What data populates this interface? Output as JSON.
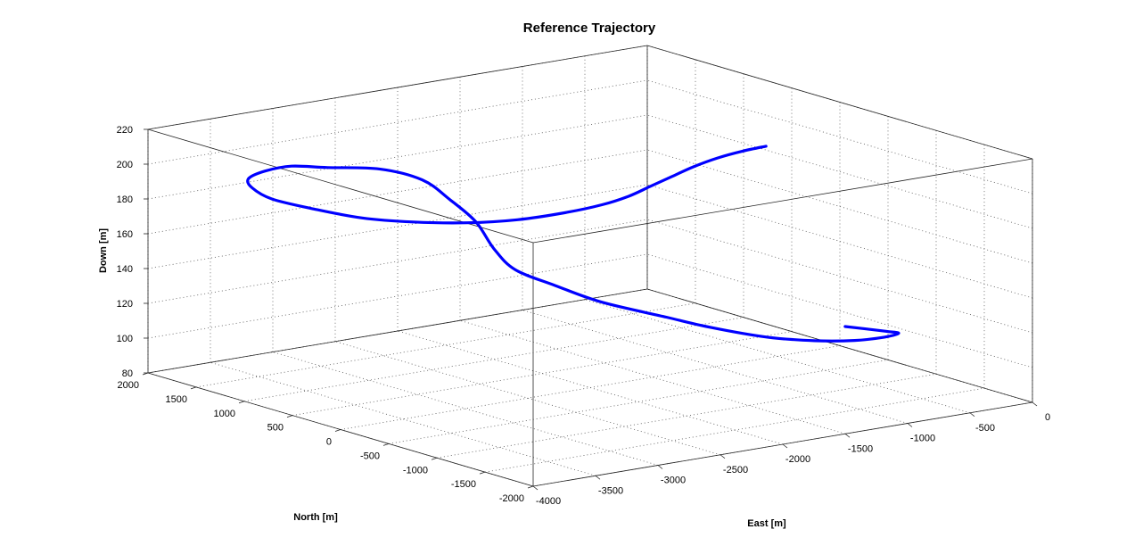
{
  "chart_data": {
    "type": "line",
    "projection": "3d",
    "title": "Reference Trajectory",
    "xlabel": "East [m]",
    "ylabel": "North [m]",
    "zlabel": "Down [m]",
    "xlim": [
      -4000,
      0
    ],
    "ylim": [
      -2000,
      2000
    ],
    "zlim": [
      80,
      220
    ],
    "xticks": [
      -4000,
      -3500,
      -3000,
      -2500,
      -2000,
      -1500,
      -1000,
      -500,
      0
    ],
    "xtick_labels": [
      "-4000",
      "-3500",
      "-3000",
      "-2500",
      "-2000",
      "-1500",
      "-1000",
      "-500",
      "0"
    ],
    "yticks": [
      -2000,
      -1500,
      -1000,
      -500,
      0,
      500,
      1000,
      1500,
      2000
    ],
    "ytick_labels": [
      "-2000",
      "-1500",
      "-1000",
      "-500",
      "0",
      "500",
      "1000",
      "1500",
      "2000"
    ],
    "zticks": [
      80,
      100,
      120,
      140,
      160,
      180,
      200,
      220
    ],
    "ztick_labels": [
      "80",
      "100",
      "120",
      "140",
      "160",
      "180",
      "200",
      "220"
    ],
    "grid": true,
    "line_color": "#0000ff",
    "series": [
      {
        "x": [
          -575,
          -480,
          -570,
          -800,
          -1100,
          -1400,
          -1700,
          -2000,
          -2200,
          -2450,
          -2550,
          -2600,
          -2500,
          -2300,
          -2200,
          -2150,
          -2300,
          -2600,
          -2850,
          -3100,
          -3350,
          -3550,
          -3700,
          -3750,
          -3750,
          -3650,
          -3450,
          -3200,
          -2900,
          -2600,
          -2350,
          -2100,
          -1850,
          -1600,
          -1350,
          -1100,
          -900
        ],
        "y": [
          -800,
          -1100,
          -1350,
          -1500,
          -1580,
          -1550,
          -1450,
          -1250,
          -1050,
          -700,
          -350,
          0,
          350,
          800,
          1200,
          1550,
          1800,
          1950,
          2000,
          1950,
          1800,
          1500,
          1100,
          600,
          100,
          -300,
          -600,
          -800,
          -900,
          -900,
          -850,
          -750,
          -650,
          -550,
          -480,
          -420,
          -400
        ],
        "z": [
          111,
          112,
          116,
          119,
          122,
          125,
          129,
          135,
          140,
          146,
          151,
          155,
          160,
          166,
          171,
          176,
          180,
          182,
          185,
          186,
          187,
          189,
          191,
          194,
          197,
          200,
          202,
          204,
          206,
          207,
          208,
          209,
          210,
          211,
          212,
          212,
          212
        ]
      }
    ]
  }
}
